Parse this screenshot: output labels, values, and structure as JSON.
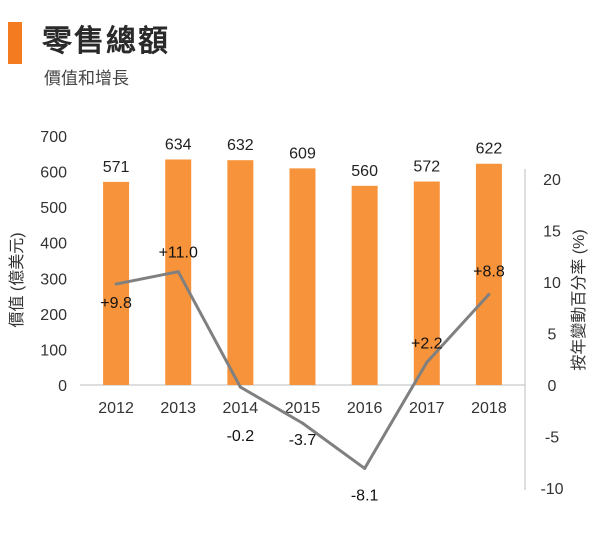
{
  "header": {
    "title": "零售總額",
    "subtitle": "價值和增長",
    "accent_color": "#f47b20"
  },
  "chart_data": {
    "type": "bar",
    "categories": [
      "2012",
      "2013",
      "2014",
      "2015",
      "2016",
      "2017",
      "2018"
    ],
    "series": [
      {
        "name": "價值 (億美元)",
        "kind": "bar",
        "axis": "left",
        "color": "#f7943b",
        "values": [
          571,
          634,
          632,
          609,
          560,
          572,
          622
        ],
        "labels": [
          "571",
          "634",
          "632",
          "609",
          "560",
          "572",
          "622"
        ]
      },
      {
        "name": "按年變動百分率 (%)",
        "kind": "line",
        "axis": "right",
        "color": "#808080",
        "values": [
          9.8,
          11.0,
          -0.2,
          -3.7,
          -8.1,
          2.2,
          8.8
        ],
        "labels": [
          "+9.8",
          "+11.0",
          "-0.2",
          "-3.7",
          "-8.1",
          "+2.2",
          "+8.8"
        ]
      }
    ],
    "ylabel": "價值 (億美元)",
    "y2label": "按年變動百分率 (%)",
    "ylim": [
      0,
      700
    ],
    "yticks": [
      "0",
      "100",
      "200",
      "300",
      "400",
      "500",
      "600",
      "700"
    ],
    "y2lim": [
      -10,
      20
    ],
    "y2ticks": [
      "-10",
      "-5",
      "0",
      "5",
      "10",
      "15",
      "20"
    ],
    "grid": false,
    "legend": "none"
  }
}
